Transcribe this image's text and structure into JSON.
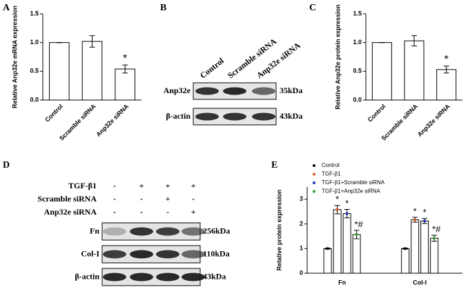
{
  "chart_data": [
    {
      "panel": "A",
      "type": "bar",
      "ylabel": "Relative Anp32e mRNA expression",
      "categories": [
        "Control",
        "Scramble siRNA",
        "Anp32e siRNA"
      ],
      "values": [
        1.0,
        1.02,
        0.54
      ],
      "errors": [
        0,
        0.1,
        0.07
      ],
      "annotations": [
        null,
        null,
        "*"
      ],
      "color": "#ffffff",
      "ylim": [
        0,
        1.5
      ],
      "yticks": [
        {
          "value": 0,
          "label": "0.0"
        },
        {
          "value": 0.5,
          "label": "0.5"
        },
        {
          "value": 1,
          "label": "1.0"
        },
        {
          "value": 1.5,
          "label": "1.5"
        }
      ]
    },
    {
      "panel": "C",
      "type": "bar",
      "ylabel": "Relative Anp32e protein expression",
      "categories": [
        "Control",
        "Scramble siRNA",
        "Anp32e siRNA"
      ],
      "values": [
        1.0,
        1.03,
        0.53
      ],
      "errors": [
        0,
        0.09,
        0.06
      ],
      "annotations": [
        null,
        null,
        "*"
      ],
      "color": "#ffffff",
      "ylim": [
        0,
        1.5
      ],
      "yticks": [
        {
          "value": 0,
          "label": "0.0"
        },
        {
          "value": 0.5,
          "label": "0.5"
        },
        {
          "value": 1,
          "label": "1.0"
        },
        {
          "value": 1.5,
          "label": "1.5"
        }
      ]
    },
    {
      "panel": "E",
      "type": "grouped_bar",
      "ylabel": "Relative protein expression",
      "categories": [
        "Fn",
        "Col-I"
      ],
      "series": [
        {
          "name": "Control",
          "color": "#000000",
          "values": [
            1.0,
            1.0
          ],
          "errors": [
            0.02,
            0.02
          ]
        },
        {
          "name": "TGF-β1",
          "color": "#d9541e",
          "values": [
            2.58,
            2.17
          ],
          "errors": [
            0.17,
            0.1
          ],
          "annotations": [
            "*",
            "*"
          ]
        },
        {
          "name": "TGF-β1+Scramble siRNA",
          "color": "#1f2fb5",
          "values": [
            2.42,
            2.12
          ],
          "errors": [
            0.17,
            0.1
          ],
          "annotations": [
            "*",
            "*"
          ]
        },
        {
          "name": "TGF-β1+Anp32e siRNA",
          "color": "#2ca02c",
          "values": [
            1.57,
            1.42
          ],
          "errors": [
            0.17,
            0.12
          ],
          "annotations": [
            "*#",
            "*#"
          ]
        }
      ],
      "ylim": [
        0,
        3.5
      ],
      "yticks": [
        0,
        1,
        2,
        3
      ]
    }
  ],
  "blots": [
    {
      "panel": "B",
      "lanes": [
        "Control",
        "Scramble siRNA",
        "Anp32e siRNA"
      ],
      "rows": [
        {
          "label": "Anp32e",
          "size": "35kDa"
        },
        {
          "label": "β-actin",
          "size": "43kDa"
        }
      ]
    },
    {
      "panel": "D",
      "conditions": [
        {
          "label": "TGF-β1",
          "signs": [
            "-",
            "+",
            "+",
            "+"
          ]
        },
        {
          "label": "Scramble siRNA",
          "signs": [
            "-",
            "-",
            "+",
            "-"
          ]
        },
        {
          "label": "Anp32e siRNA",
          "signs": [
            "-",
            "-",
            "-",
            "+"
          ]
        }
      ],
      "rows": [
        {
          "label": "Fn",
          "size": "256kDa"
        },
        {
          "label": "Col-I",
          "size": "110kDa"
        },
        {
          "label": "β-actin",
          "size": "43kDa"
        }
      ]
    }
  ]
}
